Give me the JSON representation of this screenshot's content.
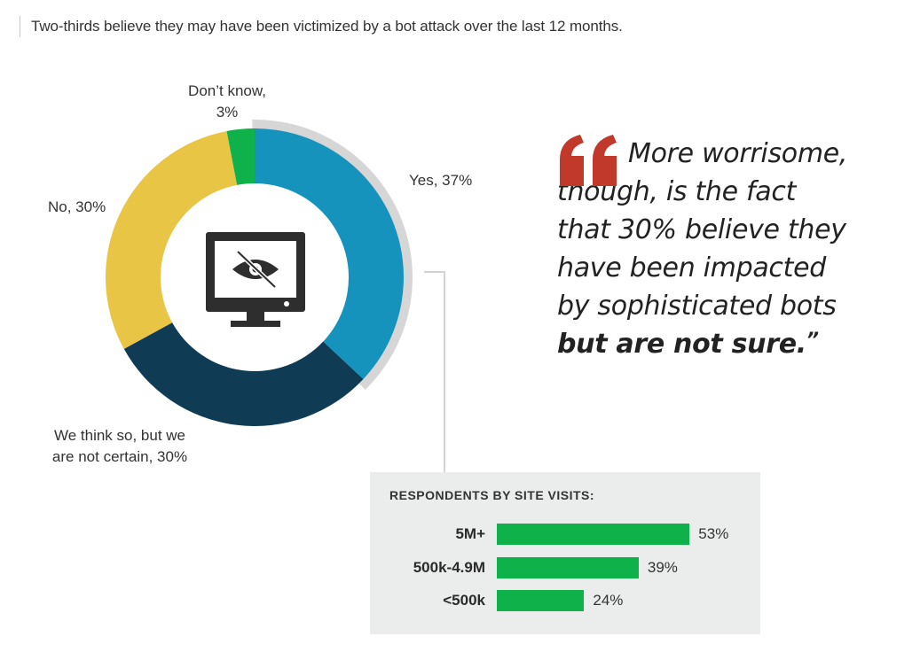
{
  "header": {
    "text": "Two-thirds believe they may have been victimized by a bot attack over the last 12 months."
  },
  "chart_data": [
    {
      "type": "pie",
      "style": "donut",
      "slices": [
        {
          "label": "Yes, 37%",
          "value": 37,
          "color": "#1593bd"
        },
        {
          "label": "We think so, but we are not certain, 30%",
          "value": 30,
          "color": "#0f3b55"
        },
        {
          "label": "No, 30%",
          "value": 30,
          "color": "#e8c545"
        },
        {
          "label": "Don’t know, 3%",
          "value": 3,
          "color": "#0fb14b"
        }
      ],
      "highlight_arc_color": "#d6d6d6",
      "center_icon": "monitor-hidden-eye-icon"
    },
    {
      "type": "bar",
      "orientation": "horizontal",
      "title": "RESPONDENTS BY SITE VISITS:",
      "categories": [
        "5M+",
        "500k-4.9M",
        "<500k"
      ],
      "values": [
        53,
        39,
        24
      ],
      "value_labels": [
        "53%",
        "39%",
        "24%"
      ],
      "color": "#0fb14b",
      "xlim": [
        0,
        100
      ]
    }
  ],
  "labels": {
    "dont_know_1": "Don’t know,",
    "dont_know_2": "3%",
    "yes": "Yes, 37%",
    "no": "No, 30%",
    "think_1": "We think so, but we",
    "think_2": "are not certain, 30%"
  },
  "quote": {
    "line1": "More worrisome,",
    "line2": "though, is the fact",
    "line3": "that 30% believe they",
    "line4": "have been impacted",
    "line5": "by sophisticated bots",
    "line6_bold": "but are not sure.",
    "close_mark": "”",
    "mark_color": "#c0392b"
  }
}
